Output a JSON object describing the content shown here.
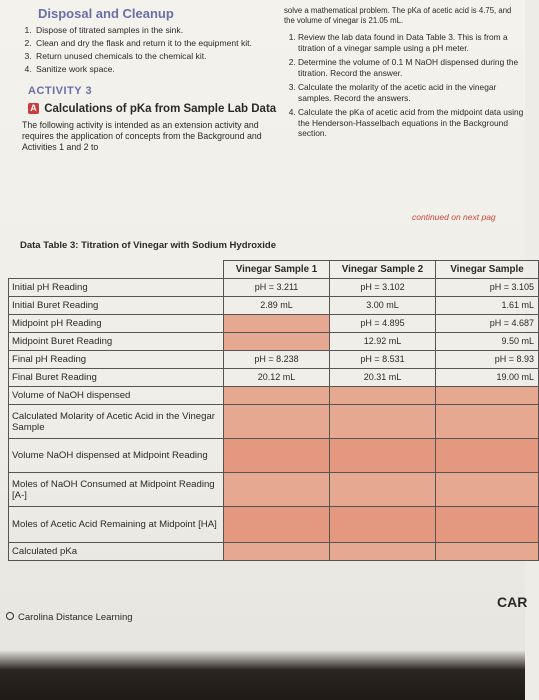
{
  "disposal": {
    "title": "Disposal and Cleanup",
    "items": [
      "Dispose of titrated samples in the sink.",
      "Clean and dry the flask and return it to the equipment kit.",
      "Return unused chemicals to the chemical kit.",
      "Sanitize work space."
    ]
  },
  "activity": {
    "label": "ACTIVITY 3",
    "badge": "A",
    "title": "Calculations of pKa from Sample Lab Data",
    "intro": "The following activity is intended as an extension activity and requires the application of concepts from the Background and Activities 1 and 2 to"
  },
  "right": {
    "continuation": "solve a mathematical problem. The pKa of acetic acid is 4.75, and the volume of vinegar is 21.05 mL.",
    "steps": [
      "Review the lab data found in Data Table 3. This is from a titration of a vinegar sample using a pH meter.",
      "Determine the volume of 0.1 M NaOH dispensed during the titration. Record the answer.",
      "Calculate the molarity of the acetic acid in the vinegar samples. Record the answers.",
      "Calculate the pKa of acetic acid from the midpoint data using the Henderson-Hasselbach equations in the Background section."
    ],
    "continued": "continued on next pag"
  },
  "table": {
    "title": "Data Table 3: Titration of Vinegar with Sodium Hydroxide",
    "headers": [
      "Vinegar Sample 1",
      "Vinegar Sample 2",
      "Vinegar Sample"
    ],
    "rows": [
      {
        "label": "Initial pH Reading",
        "v": [
          "pH = 3.211",
          "pH = 3.102",
          "pH = 3.105"
        ]
      },
      {
        "label": "Initial Buret Reading",
        "v": [
          "2.89 mL",
          "3.00 mL",
          "1.61 mL"
        ]
      },
      {
        "label": "Midpoint pH Reading",
        "v": [
          "",
          "pH = 4.895",
          "pH = 4.687"
        ]
      },
      {
        "label": "Midpoint Buret Reading",
        "v": [
          "",
          "12.92 mL",
          "9.50 mL"
        ]
      },
      {
        "label": "Final pH Reading",
        "v": [
          "pH = 8.238",
          "pH = 8.531",
          "pH = 8.93"
        ]
      },
      {
        "label": "Final Buret Reading",
        "v": [
          "20.12 mL",
          "20.31 mL",
          "19.00 mL"
        ]
      },
      {
        "label": "Volume of NaOH dispensed",
        "v": [
          "",
          "",
          ""
        ]
      },
      {
        "label": "Calculated Molarity of Acetic Acid in the Vinegar Sample",
        "v": [
          "",
          "",
          ""
        ]
      },
      {
        "label": "Volume NaOH dispensed at Midpoint Reading",
        "v": [
          "",
          "",
          ""
        ]
      },
      {
        "label": "Moles of NaOH Consumed at Midpoint Reading [A-]",
        "v": [
          "",
          "",
          ""
        ]
      },
      {
        "label": "Moles of Acetic Acid Remaining at Midpoint [HA]",
        "v": [
          "",
          "",
          ""
        ]
      },
      {
        "label": "Calculated pKa",
        "v": [
          "",
          "",
          ""
        ]
      }
    ]
  },
  "footer": {
    "text": "Carolina Distance Learning",
    "corner": "CAR"
  }
}
